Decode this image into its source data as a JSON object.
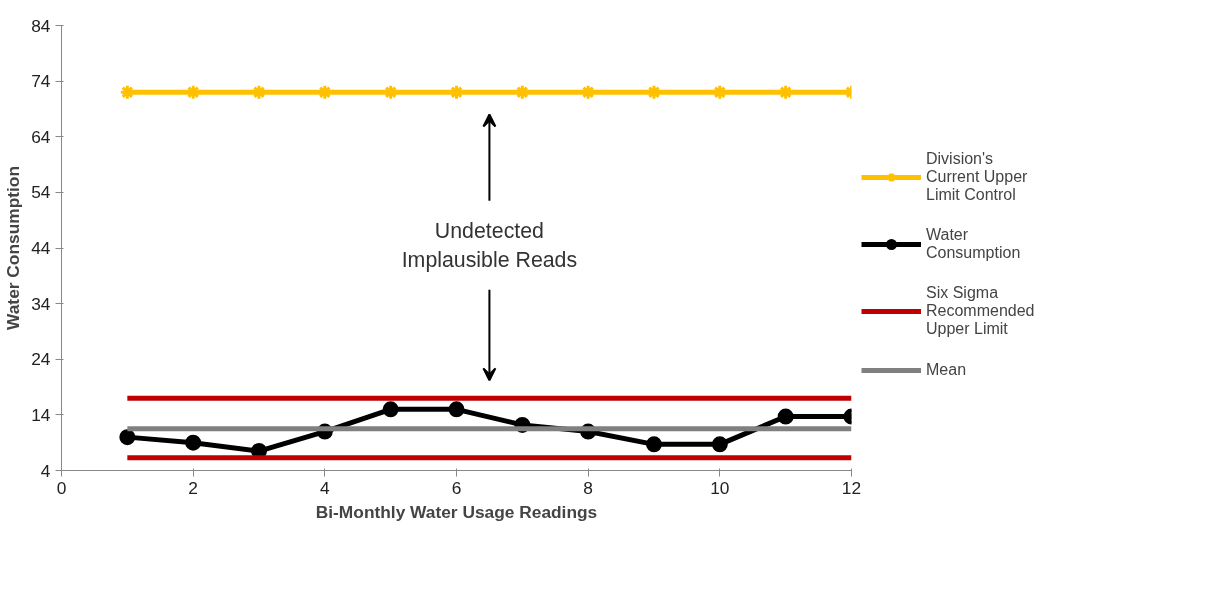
{
  "chart_data": {
    "type": "line",
    "xlabel": "Bi-Monthly Water Usage Readings",
    "ylabel": "Water Consumption",
    "x": [
      1,
      2,
      3,
      4,
      5,
      6,
      7,
      8,
      9,
      10,
      11,
      12
    ],
    "series": [
      {
        "name": "Division's Current Upper Limit Control",
        "color": "#ffc000",
        "marker": "cross",
        "values": [
          72,
          72,
          72,
          72,
          72,
          72,
          72,
          72,
          72,
          72,
          72,
          72
        ]
      },
      {
        "name": "Water Consumption",
        "color": "#000000",
        "marker": "circle",
        "values": [
          10,
          9,
          7.5,
          11,
          15,
          15,
          12.2,
          11,
          8.7,
          8.7,
          13.7,
          13.7
        ]
      },
      {
        "name": "Six Sigma Recommended Upper Limit",
        "color": "#c00000",
        "marker": "none",
        "values": [
          17,
          17,
          17,
          17,
          17,
          17,
          17,
          17,
          17,
          17,
          17,
          17
        ]
      },
      {
        "color": "#c00000",
        "marker": "none",
        "values": [
          6.3,
          6.3,
          6.3,
          6.3,
          6.3,
          6.3,
          6.3,
          6.3,
          6.3,
          6.3,
          6.3,
          6.3
        ]
      },
      {
        "name": "Mean",
        "color": "#808080",
        "marker": "none",
        "values": [
          11.5,
          11.5,
          11.5,
          11.5,
          11.5,
          11.5,
          11.5,
          11.5,
          11.5,
          11.5,
          11.5,
          11.5
        ]
      }
    ],
    "annotations": [
      "Undetected\nImplausible Reads"
    ],
    "xlim": [
      0,
      12
    ],
    "xticks": [
      0,
      2,
      4,
      6,
      8,
      10,
      12
    ],
    "ylim": [
      4,
      84
    ],
    "yticks": [
      4,
      14,
      24,
      34,
      44,
      54,
      64,
      74,
      84
    ],
    "grid": false,
    "legend": "right"
  }
}
